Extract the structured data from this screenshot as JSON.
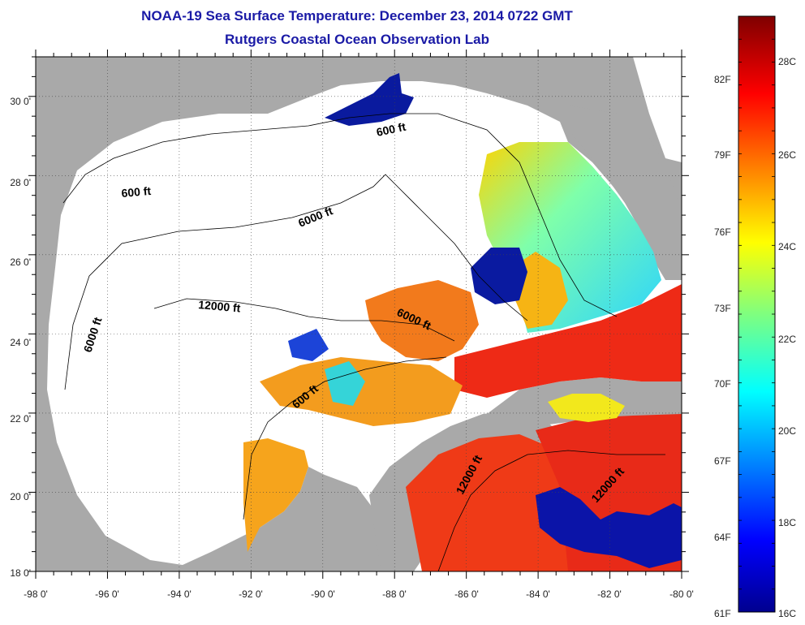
{
  "title": "NOAA-19 Sea Surface Temperature:  December 23, 2014 0722 GMT",
  "subtitle": "Rutgers Coastal Ocean Observation Lab",
  "map": {
    "lon_labels": [
      "-98 0'",
      "-96 0'",
      "-94 0'",
      "-92 0'",
      "-90 0'",
      "-88 0'",
      "-86 0'",
      "-84 0'",
      "-82 0'",
      "-80 0'"
    ],
    "lat_labels": [
      "30 0'",
      "28 0'",
      "26 0'",
      "24 0'",
      "22 0'",
      "20 0'",
      "18 0'"
    ],
    "lon_range": [
      -98,
      -80
    ],
    "lat_range": [
      18,
      31
    ],
    "contour_labels": [
      "600 ft",
      "600 ft",
      "6000 ft",
      "6000 ft",
      "12000 ft",
      "6000 ft",
      "600 ft",
      "12000 ft",
      "12000 ft"
    ],
    "colors": {
      "land": "#a9a9a9",
      "no_data": "#ffffff"
    }
  },
  "colorbar": {
    "fahrenheit_labels": [
      "82F",
      "79F",
      "76F",
      "73F",
      "70F",
      "67F",
      "64F",
      "61F"
    ],
    "celsius_labels": [
      "28C",
      "26C",
      "24C",
      "22C",
      "20C",
      "18C",
      "16C"
    ],
    "range_c": [
      16,
      29
    ]
  }
}
